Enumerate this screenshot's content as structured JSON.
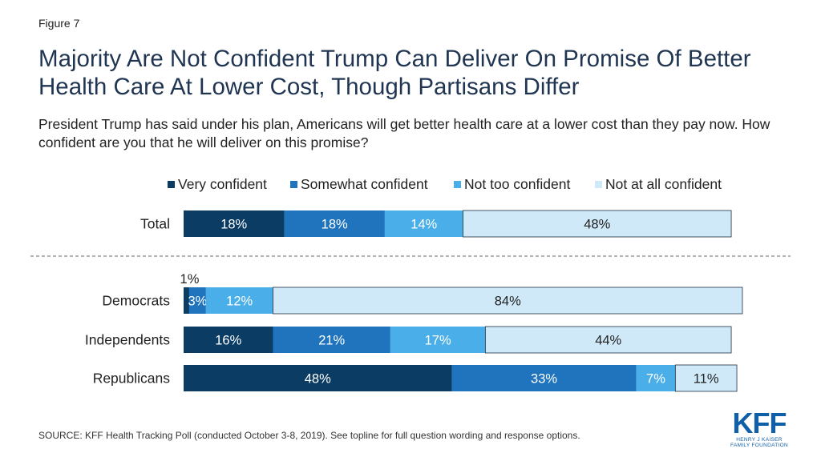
{
  "figure_label": "Figure 7",
  "title": "Majority Are Not Confident Trump Can Deliver On Promise Of Better Health Care At Lower Cost, Though Partisans Differ",
  "subtitle": "President Trump has said under his plan, Americans will get better health care at a lower cost than they pay now. How confident are you that he will deliver on this promise?",
  "source": "SOURCE: KFF Health Tracking Poll (conducted October 3-8, 2019). See topline for full question wording and response options.",
  "logo": {
    "text": "KFF",
    "line1": "HENRY J KAISER",
    "line2": "FAMILY FOUNDATION"
  },
  "colors": {
    "very_confident": "#0b3d64",
    "somewhat_confident": "#1f74bd",
    "not_too_confident": "#4aaee8",
    "not_at_all_confident": "#cfe9f9",
    "divider": "#888888"
  },
  "chart_data": {
    "type": "bar",
    "orientation": "horizontal",
    "stacked": true,
    "categories": [
      "Total",
      "Democrats",
      "Independents",
      "Republicans"
    ],
    "series": [
      {
        "name": "Very confident",
        "values": [
          18,
          1,
          16,
          48
        ],
        "labels": [
          "18%",
          "1%",
          "16%",
          "48%"
        ]
      },
      {
        "name": "Somewhat confident",
        "values": [
          18,
          3,
          21,
          33
        ],
        "labels": [
          "18%",
          "3%",
          "21%",
          "33%"
        ]
      },
      {
        "name": "Not too confident",
        "values": [
          14,
          12,
          17,
          7
        ],
        "labels": [
          "14%",
          "12%",
          "17%",
          "7%"
        ]
      },
      {
        "name": "Not at all confident",
        "values": [
          48,
          84,
          44,
          11
        ],
        "labels": [
          "48%",
          "84%",
          "44%",
          "11%"
        ]
      }
    ],
    "legend": "top",
    "grid": false,
    "xlim": [
      0,
      100
    ]
  }
}
